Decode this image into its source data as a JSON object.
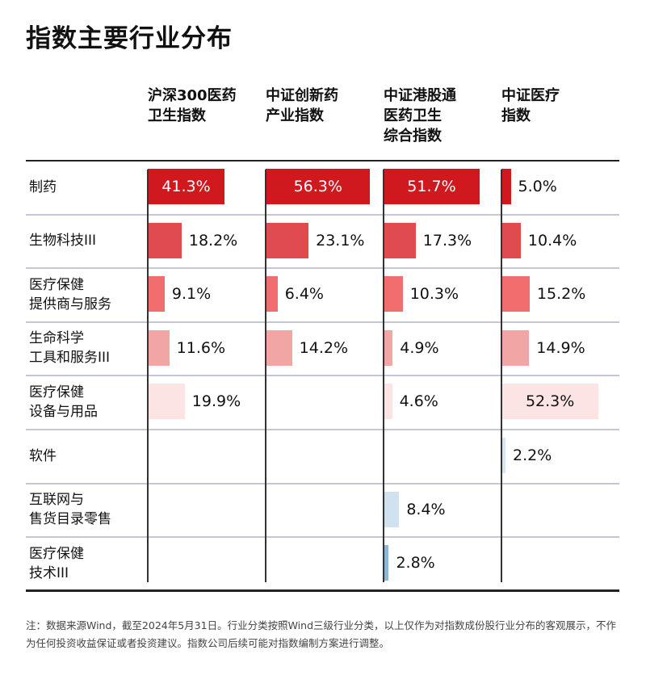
{
  "title": "指数主要行业分布",
  "chart_data": {
    "type": "bar",
    "title": "指数主要行业分布",
    "columns": [
      "沪深300医药\n卫生指数",
      "中证创新药\n产业指数",
      "中证港股通\n医药卫生\n综合指数",
      "中证医疗\n指数"
    ],
    "categories": [
      "制药",
      "生物科技III",
      "医疗保健\n提供商与服务",
      "生命科学\n工具和服务III",
      "医疗保健\n设备与用品",
      "软件",
      "互联网与\n售货目录零售",
      "医疗保健\n技术III"
    ],
    "row_colors": [
      "#d0191e",
      "#e04b50",
      "#f26e6e",
      "#f2a5a5",
      "#fbe4e3",
      "#d6e6f1",
      "#d0e2ef",
      "#8fb6d2"
    ],
    "values": [
      [
        41.3,
        56.3,
        51.7,
        5.0
      ],
      [
        18.2,
        23.1,
        17.3,
        10.4
      ],
      [
        9.1,
        6.4,
        10.3,
        15.2
      ],
      [
        11.6,
        14.2,
        4.9,
        14.9
      ],
      [
        19.9,
        null,
        4.6,
        52.3
      ],
      [
        null,
        null,
        null,
        2.2
      ],
      [
        null,
        null,
        8.4,
        null
      ],
      [
        null,
        null,
        2.8,
        null
      ]
    ],
    "labels": [
      [
        "41.3%",
        "56.3%",
        "51.7%",
        "5.0%"
      ],
      [
        "18.2%",
        "23.1%",
        "17.3%",
        "10.4%"
      ],
      [
        "9.1%",
        "6.4%",
        "10.3%",
        "15.2%"
      ],
      [
        "11.6%",
        "14.2%",
        "4.9%",
        "14.9%"
      ],
      [
        "19.9%",
        "",
        "4.6%",
        "52.3%"
      ],
      [
        "",
        "",
        "",
        "2.2%"
      ],
      [
        "",
        "",
        "8.4%",
        ""
      ],
      [
        "",
        "",
        "2.8%",
        ""
      ]
    ],
    "unit": "%"
  },
  "footnote": "注：数据来源Wind，截至2024年5月31日。行业分类按照Wind三级行业分类，以上仅作为对指数成份股行业分布的客观展示，不作为任何投资收益保证或者投资建议。指数公司后续可能对指数编制方案进行调整。"
}
